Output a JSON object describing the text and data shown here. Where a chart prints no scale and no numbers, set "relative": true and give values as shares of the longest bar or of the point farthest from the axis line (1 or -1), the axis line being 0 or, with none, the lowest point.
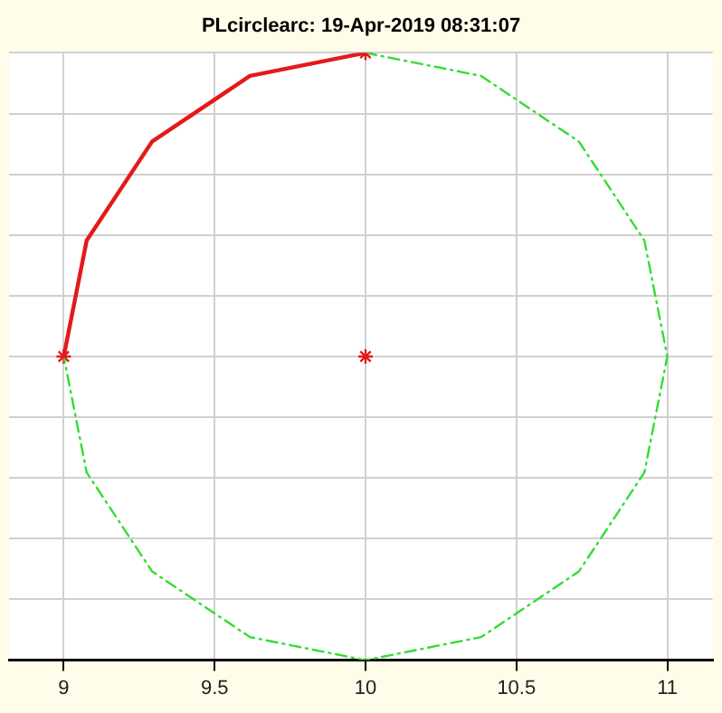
{
  "chart_data": {
    "type": "line",
    "title": "PLcirclearc: 19-Apr-2019 08:31:07",
    "relative": true,
    "xlim": [
      8.82,
      11.15
    ],
    "xticks": [
      9,
      9.5,
      10,
      10.5,
      11
    ],
    "tick_labels": "x",
    "grid": true,
    "series": [
      {
        "color": "#e31a1c",
        "line_style": "solid",
        "marker": "none",
        "x": [
          9,
          9.076,
          9.293,
          9.617,
          10
        ],
        "values": [
          0.5,
          0.691,
          0.854,
          0.962,
          1
        ]
      },
      {
        "color": "#33dd33",
        "line_style": "dashdot",
        "marker": "none",
        "x": [
          10,
          10.383,
          10.707,
          10.924,
          11,
          10.924,
          10.707,
          10.383,
          10,
          9.617,
          9.293,
          9.076,
          9
        ],
        "values": [
          1,
          0.962,
          0.854,
          0.691,
          0.5,
          0.309,
          0.146,
          0.038,
          0,
          0.038,
          0.146,
          0.309,
          0.5
        ]
      },
      {
        "type": "scatter",
        "color": "#e31a1c",
        "marker": "cross",
        "x": [
          9,
          10,
          10
        ],
        "values": [
          0.5,
          0.5,
          1
        ]
      }
    ]
  }
}
